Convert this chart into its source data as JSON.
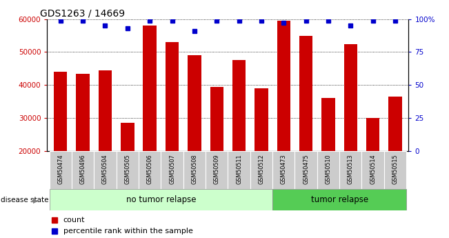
{
  "title": "GDS1263 / 14669",
  "samples": [
    "GSM50474",
    "GSM50496",
    "GSM50504",
    "GSM50505",
    "GSM50506",
    "GSM50507",
    "GSM50508",
    "GSM50509",
    "GSM50511",
    "GSM50512",
    "GSM50473",
    "GSM50475",
    "GSM50510",
    "GSM50513",
    "GSM50514",
    "GSM50515"
  ],
  "counts": [
    44000,
    43500,
    44500,
    28500,
    58000,
    53000,
    49000,
    39500,
    47500,
    39000,
    59500,
    55000,
    36000,
    52500,
    30000,
    36500
  ],
  "percentiles": [
    99,
    99,
    95,
    93,
    99,
    99,
    91,
    99,
    99,
    99,
    97,
    99,
    99,
    95,
    99,
    99
  ],
  "group1_label": "no tumor relapse",
  "group2_label": "tumor relapse",
  "group1_count": 10,
  "group2_count": 6,
  "bar_color": "#cc0000",
  "dot_color": "#0000cc",
  "ylim_left": [
    20000,
    60000
  ],
  "ylim_right": [
    0,
    100
  ],
  "yticks_left": [
    20000,
    30000,
    40000,
    50000,
    60000
  ],
  "yticks_right": [
    0,
    25,
    50,
    75,
    100
  ],
  "ylabel_left_color": "#cc0000",
  "ylabel_right_color": "#0000cc",
  "group1_bg": "#ccffcc",
  "group2_bg": "#55cc55",
  "xticklabel_bg": "#cccccc",
  "disease_state_label": "disease state",
  "legend_count_label": "count",
  "legend_pct_label": "percentile rank within the sample"
}
